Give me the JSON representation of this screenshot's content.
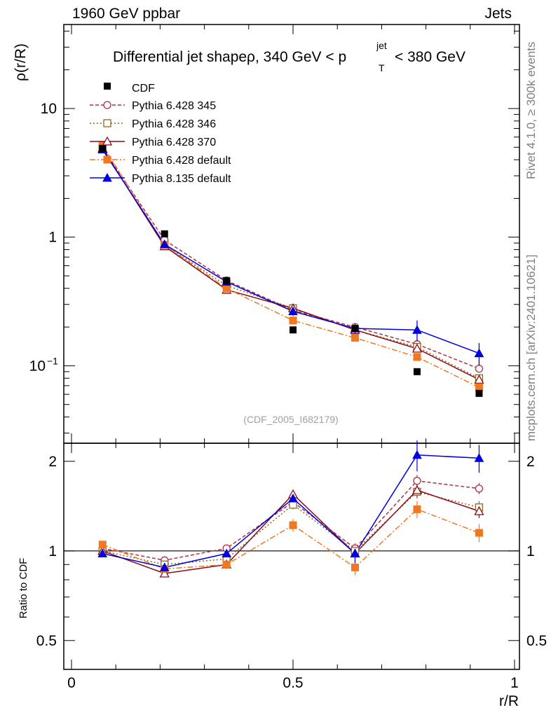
{
  "header": {
    "left": "1960 GeV ppbar",
    "right": "Jets"
  },
  "side_labels": {
    "rivet": "Rivet 4.1.0, ≥ 300k events",
    "mcplots": "mcplots.cern.ch [arXiv:2401.10621]"
  },
  "watermark": "(CDF_2005_I682179)",
  "chart_data": {
    "type": "line",
    "title": "Differential jet shapeρ, 340 GeV < p_T^jet < 380 GeV",
    "title_parts": {
      "main": "Differential jet shapeρ, 340 GeV < p",
      "sup": "jet",
      "sub": "T",
      "tail": "< 380 GeV"
    },
    "xlabel": "r/R",
    "ylabel": "ρ(r/R)",
    "ratio_ylabel": "Ratio to CDF",
    "xlim": [
      0,
      1
    ],
    "ylim": [
      0.025,
      45
    ],
    "yscale": "log",
    "ratio_ylim": [
      0.4,
      2.3
    ],
    "ratio_yscale": "log",
    "x_ticks": [
      {
        "v": 0,
        "label": "0"
      },
      {
        "v": 0.5,
        "label": "0.5"
      },
      {
        "v": 1,
        "label": "1"
      }
    ],
    "y_ticks": [
      {
        "v": 0.1,
        "label": "10",
        "sup": "−1"
      },
      {
        "v": 1,
        "label": "1"
      },
      {
        "v": 10,
        "label": "10"
      }
    ],
    "ratio_ticks": [
      {
        "v": 0.5,
        "label": "0.5"
      },
      {
        "v": 1,
        "label": "1"
      },
      {
        "v": 2,
        "label": "2"
      }
    ],
    "x": [
      0.07,
      0.21,
      0.35,
      0.5,
      0.64,
      0.78,
      0.92
    ],
    "data": {
      "name": "CDF",
      "values": [
        4.9,
        1.06,
        0.46,
        0.19,
        0.195,
        0.09,
        0.061
      ]
    },
    "series": [
      {
        "name": "Pythia 6.428 345",
        "color": "#b03040",
        "dash": "5,3",
        "marker": "circle-open",
        "values": [
          4.95,
          0.95,
          0.46,
          0.27,
          0.2,
          0.147,
          0.095
        ],
        "ratio": [
          1.02,
          0.93,
          1.02,
          1.46,
          1.02,
          1.72,
          1.62
        ],
        "ratio_err": [
          0.02,
          0.02,
          0.02,
          0.05,
          0.04,
          0.08,
          0.07
        ]
      },
      {
        "name": "Pythia 6.428 346",
        "color": "#8b6914",
        "dash": "2,3",
        "marker": "square-open",
        "values": [
          4.9,
          0.87,
          0.42,
          0.28,
          0.19,
          0.14,
          0.08
        ],
        "ratio": [
          1.0,
          0.9,
          0.94,
          1.43,
          1.0,
          1.58,
          1.4
        ],
        "ratio_err": [
          0.02,
          0.02,
          0.02,
          0.05,
          0.04,
          0.08,
          0.07
        ]
      },
      {
        "name": "Pythia 6.428 370",
        "color": "#8b0a1a",
        "dash": "",
        "marker": "triangle-open",
        "values": [
          4.9,
          0.85,
          0.39,
          0.28,
          0.19,
          0.136,
          0.078
        ],
        "ratio": [
          1.0,
          0.84,
          0.9,
          1.55,
          0.98,
          1.6,
          1.36
        ],
        "ratio_err": [
          0.02,
          0.02,
          0.02,
          0.05,
          0.04,
          0.08,
          0.07
        ]
      },
      {
        "name": "Pythia 6.428 default",
        "color": "#f07820",
        "dash": "8,3,2,3",
        "marker": "square-filled",
        "values": [
          5.2,
          0.87,
          0.4,
          0.225,
          0.165,
          0.117,
          0.068
        ],
        "ratio": [
          1.05,
          0.87,
          0.9,
          1.22,
          0.88,
          1.38,
          1.15
        ],
        "ratio_err": [
          0.03,
          0.03,
          0.03,
          0.06,
          0.05,
          0.09,
          0.08
        ]
      },
      {
        "name": "Pythia 8.135 default",
        "color": "#0000e0",
        "dash": "",
        "marker": "triangle-filled",
        "values": [
          4.8,
          0.88,
          0.45,
          0.265,
          0.195,
          0.19,
          0.125
        ],
        "ratio": [
          0.98,
          0.88,
          0.98,
          1.5,
          0.98,
          2.1,
          2.05
        ],
        "ratio_err": [
          0.02,
          0.04,
          0.06,
          0.09,
          0.07,
          0.25,
          0.22
        ]
      }
    ],
    "error_bars_upper": {
      "Pythia 8.135 default": [
        0.2,
        0.03,
        0.02,
        0.02,
        0.015,
        0.035,
        0.025
      ]
    }
  }
}
